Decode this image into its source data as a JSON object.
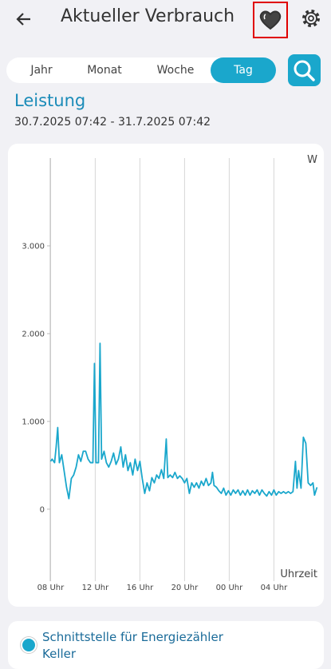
{
  "header": {
    "title": "Aktueller Verbrauch"
  },
  "tabs": {
    "items": [
      "Jahr",
      "Monat",
      "Woche",
      "Tag"
    ],
    "active": 3
  },
  "section": {
    "title": "Leistung",
    "date_range": "30.7.2025 07:42 - 31.7.2025 07:42"
  },
  "chart_data": {
    "type": "line",
    "y_unit_label": "W",
    "x_axis_label": "Uhrzeit",
    "x": [
      8.0,
      8.14,
      8.36,
      8.5,
      8.64,
      8.79,
      9.0,
      9.21,
      9.43,
      9.64,
      9.86,
      10.07,
      10.29,
      10.5,
      10.71,
      10.93,
      11.14,
      11.36,
      11.57,
      11.79,
      11.93,
      12.07,
      12.29,
      12.43,
      12.57,
      12.79,
      13.0,
      13.21,
      13.43,
      13.64,
      13.86,
      14.07,
      14.29,
      14.5,
      14.71,
      14.93,
      15.14,
      15.36,
      15.57,
      15.79,
      16.0,
      16.21,
      16.43,
      16.64,
      16.86,
      17.07,
      17.29,
      17.5,
      17.71,
      17.93,
      18.14,
      18.36,
      18.5,
      18.71,
      18.93,
      19.14,
      19.36,
      19.57,
      19.79,
      20.0,
      20.21,
      20.43,
      20.64,
      20.86,
      21.07,
      21.29,
      21.5,
      21.71,
      21.93,
      22.14,
      22.36,
      22.5,
      22.64,
      22.86,
      23.07,
      23.29,
      23.5,
      23.71,
      23.93,
      24.14,
      24.36,
      24.57,
      24.79,
      25.0,
      25.21,
      25.43,
      25.64,
      25.86,
      26.07,
      26.29,
      26.5,
      26.71,
      26.93,
      27.14,
      27.36,
      27.57,
      27.79,
      28.0,
      28.21,
      28.43,
      28.64,
      28.86,
      29.07,
      29.29,
      29.5,
      29.71,
      29.93,
      30.07,
      30.21,
      30.43,
      30.64,
      30.86,
      31.07,
      31.29,
      31.5,
      31.64,
      31.86
    ],
    "series": [
      {
        "name": "Schnittstelle für Energiezähler Keller",
        "color": "#1aa7cc",
        "values": [
          545,
          570,
          530,
          710,
          930,
          530,
          620,
          440,
          250,
          120,
          350,
          390,
          480,
          620,
          545,
          660,
          660,
          570,
          530,
          530,
          1660,
          530,
          530,
          1890,
          570,
          660,
          530,
          480,
          545,
          640,
          510,
          570,
          710,
          480,
          620,
          440,
          530,
          390,
          570,
          440,
          545,
          350,
          180,
          300,
          210,
          360,
          300,
          390,
          350,
          450,
          350,
          800,
          360,
          390,
          360,
          420,
          350,
          380,
          350,
          300,
          350,
          180,
          300,
          250,
          300,
          240,
          320,
          270,
          350,
          270,
          300,
          420,
          270,
          250,
          210,
          180,
          240,
          160,
          210,
          160,
          220,
          180,
          220,
          160,
          210,
          160,
          220,
          160,
          210,
          180,
          220,
          160,
          220,
          180,
          150,
          200,
          160,
          220,
          160,
          200,
          180,
          200,
          180,
          200,
          180,
          200,
          545,
          240,
          440,
          240,
          820,
          750,
          300,
          270,
          300,
          160,
          250
        ]
      }
    ],
    "xlim": [
      7.9,
      31.9
    ],
    "xticks": [
      {
        "value": 8,
        "label": "08 Uhr"
      },
      {
        "value": 12,
        "label": "12 Uhr"
      },
      {
        "value": 16,
        "label": "16 Uhr"
      },
      {
        "value": 20,
        "label": "20 Uhr"
      },
      {
        "value": 24,
        "label": "00 Uhr"
      },
      {
        "value": 28,
        "label": "04 Uhr"
      }
    ],
    "ylim": [
      -820,
      4000
    ],
    "yticks": [
      0,
      {
        "value": 1000,
        "label": "1.000"
      },
      {
        "value": 2000,
        "label": "2.000"
      },
      {
        "value": 3000,
        "label": "3.000"
      }
    ],
    "xgrid": true
  }
}
